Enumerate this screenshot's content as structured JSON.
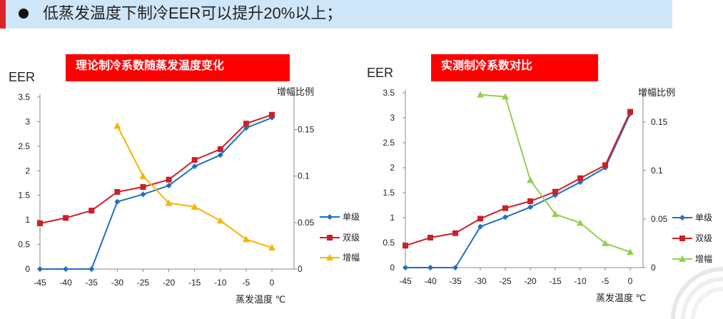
{
  "header": {
    "text": "低蒸发温度下制冷EER可以提升20%以上；",
    "accent_color": "#d9262c",
    "background_color": "#cfe6f8"
  },
  "chart_data": [
    {
      "type": "line",
      "title": "理论制冷系数随蒸发温度变化",
      "ylabel": "EER",
      "y2label": "增幅比例",
      "xlabel": "蒸发温度 ℃",
      "x": [
        -45,
        -40,
        -35,
        -30,
        -25,
        -20,
        -15,
        -10,
        -5,
        0
      ],
      "ylim": [
        0,
        3.5
      ],
      "y2lim": [
        0,
        0.185
      ],
      "y_ticks": [
        "0",
        "0.5",
        "1",
        "1.5",
        "2",
        "2.5",
        "3",
        "3.5"
      ],
      "y2_ticks": [
        "0",
        "0.05",
        "0.1",
        "0.15"
      ],
      "x_ticks": [
        "-45",
        "-40",
        "-35",
        "-30",
        "-25",
        "-20",
        "-15",
        "-10",
        "-5",
        "0"
      ],
      "legend_position": "right",
      "series": [
        {
          "name": "单级",
          "axis": "left",
          "color": "#1f6fc0",
          "marker": "diamond",
          "values": [
            0,
            0,
            0,
            1.37,
            1.52,
            1.7,
            2.09,
            2.32,
            2.87,
            3.08
          ]
        },
        {
          "name": "双级",
          "axis": "left",
          "color": "#cc1f27",
          "marker": "square",
          "values": [
            0.93,
            1.04,
            1.19,
            1.57,
            1.67,
            1.82,
            2.22,
            2.44,
            2.96,
            3.14
          ]
        },
        {
          "name": "增幅",
          "axis": "right",
          "color": "#f7b500",
          "marker": "triangle",
          "values": [
            null,
            null,
            null,
            0.154,
            0.1,
            0.071,
            0.067,
            0.052,
            0.032,
            0.023
          ]
        }
      ]
    },
    {
      "type": "line",
      "title": "实测制冷系数对比",
      "ylabel": "EER",
      "y2label": "增幅比例",
      "xlabel": "蒸发温度 ℃",
      "x": [
        -45,
        -40,
        -35,
        -30,
        -25,
        -20,
        -15,
        -10,
        -5,
        0
      ],
      "ylim": [
        0,
        3.5
      ],
      "y2lim": [
        0,
        0.18
      ],
      "y_ticks": [
        "0",
        "0.5",
        "1",
        "1.5",
        "2",
        "2.5",
        "3",
        "3.5"
      ],
      "y2_ticks": [
        "0",
        "0.05",
        "0.1",
        "0.15"
      ],
      "x_ticks": [
        "-45",
        "-40",
        "-35",
        "-30",
        "-25",
        "-20",
        "-15",
        "-10",
        "-5",
        "0"
      ],
      "legend_position": "right",
      "series": [
        {
          "name": "单级",
          "axis": "left",
          "color": "#1f6fc0",
          "marker": "diamond",
          "values": [
            0,
            0,
            0,
            0.82,
            1.01,
            1.21,
            1.45,
            1.71,
            2.0,
            3.08
          ]
        },
        {
          "name": "双级",
          "axis": "left",
          "color": "#cc1f27",
          "marker": "square",
          "values": [
            0.44,
            0.6,
            0.69,
            0.98,
            1.19,
            1.33,
            1.52,
            1.79,
            2.05,
            3.12
          ]
        },
        {
          "name": "增幅",
          "axis": "right",
          "color": "#92d050",
          "marker": "triangle",
          "values": [
            null,
            null,
            null,
            0.178,
            0.176,
            0.09,
            0.055,
            0.046,
            0.025,
            0.016
          ]
        }
      ]
    }
  ]
}
